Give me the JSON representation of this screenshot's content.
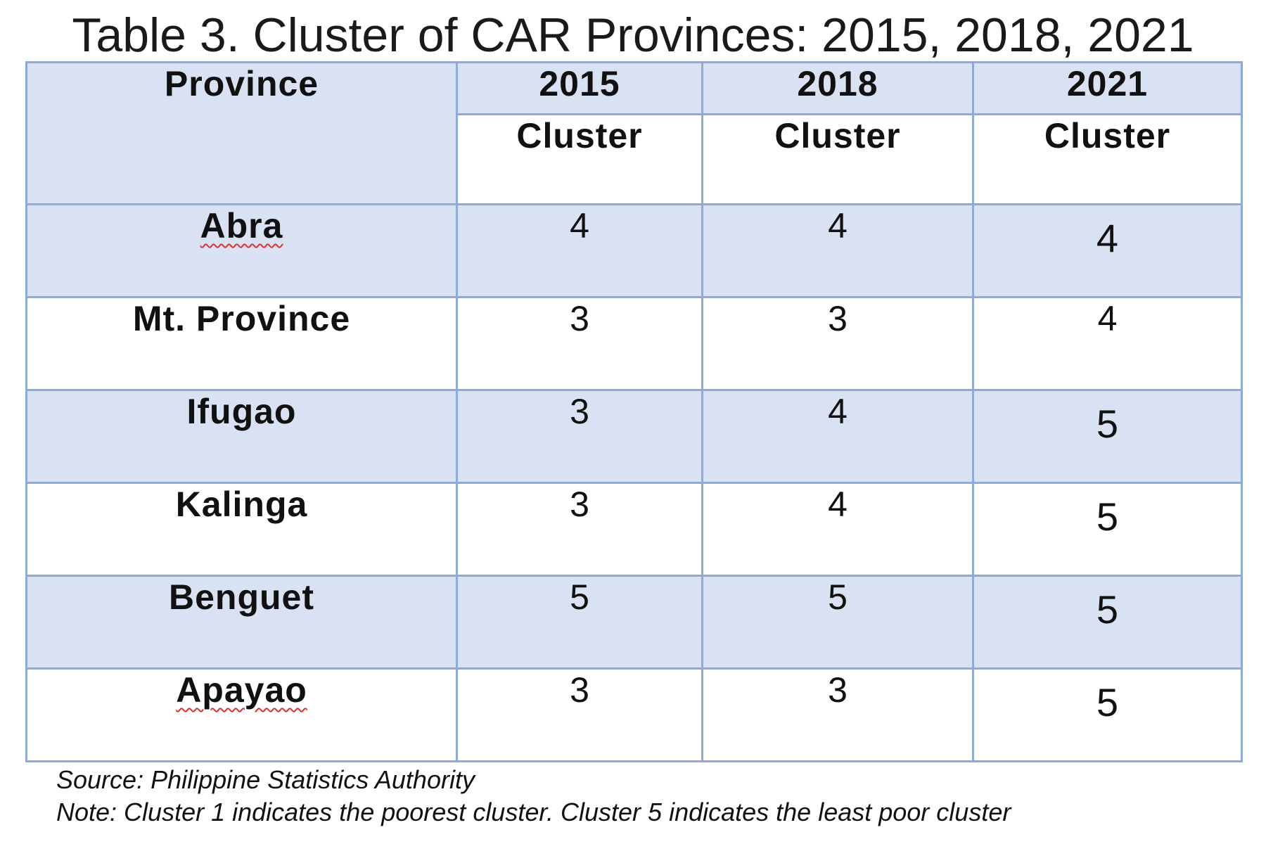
{
  "title": "Table 3. Cluster of CAR Provinces: 2015, 2018, 2021",
  "header": {
    "province": "Province",
    "years": [
      "2015",
      "2018",
      "2021"
    ],
    "sub": "Cluster"
  },
  "rows": [
    {
      "province": "Abra",
      "v2015": "4",
      "v2018": "4",
      "v2021": "4"
    },
    {
      "province": "Mt. Province",
      "v2015": "3",
      "v2018": "3",
      "v2021": "4"
    },
    {
      "province": "Ifugao",
      "v2015": "3",
      "v2018": "4",
      "v2021": "5"
    },
    {
      "province": "Kalinga",
      "v2015": "3",
      "v2018": "4",
      "v2021": "5"
    },
    {
      "province": "Benguet",
      "v2015": "5",
      "v2018": "5",
      "v2021": "5"
    },
    {
      "province": "Apayao",
      "v2015": "3",
      "v2018": "3",
      "v2021": "5"
    }
  ],
  "source": "Source: Philippine Statistics Authority",
  "note": "Note: Cluster 1 indicates the poorest cluster. Cluster 5 indicates the least poor cluster",
  "colors": {
    "header_fill": "#d9e2f3",
    "border": "#8eaadb",
    "spellcheck_underline": "#e03030"
  }
}
